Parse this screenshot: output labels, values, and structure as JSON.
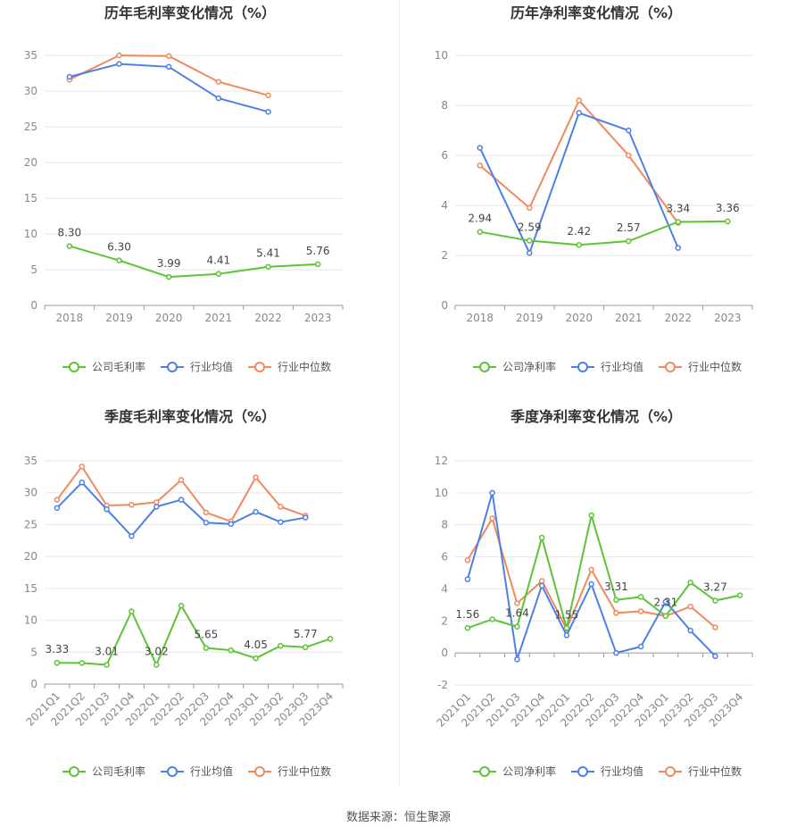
{
  "source": "数据来源：恒生聚源",
  "colors": {
    "company": "#5cc334",
    "avg": "#4e7fe6",
    "median": "#f0895d",
    "grid": "#e6e6e6",
    "axis": "#888888"
  },
  "chart_data": [
    {
      "type": "line",
      "title": "历年毛利率变化情况（%）",
      "categories": [
        "2018",
        "2019",
        "2020",
        "2021",
        "2022",
        "2023"
      ],
      "ylim": [
        0,
        35
      ],
      "yticks": [
        0,
        5,
        10,
        15,
        20,
        25,
        30,
        35
      ],
      "legend": "bottom",
      "series": [
        {
          "name": "公司毛利率",
          "key": "company",
          "values": [
            8.3,
            6.3,
            3.99,
            4.41,
            5.41,
            5.76
          ],
          "labels": [
            "8.30",
            "6.30",
            "3.99",
            "4.41",
            "5.41",
            "5.76"
          ]
        },
        {
          "name": "行业均值",
          "key": "avg",
          "values": [
            32.0,
            33.8,
            33.4,
            29.0,
            27.1,
            null
          ]
        },
        {
          "name": "行业中位数",
          "key": "median",
          "values": [
            31.6,
            35.0,
            34.9,
            31.3,
            29.4,
            null
          ]
        }
      ]
    },
    {
      "type": "line",
      "title": "历年净利率变化情况（%）",
      "categories": [
        "2018",
        "2019",
        "2020",
        "2021",
        "2022",
        "2023"
      ],
      "ylim": [
        0,
        10
      ],
      "yticks": [
        0,
        2,
        4,
        6,
        8,
        10
      ],
      "legend": "bottom",
      "series": [
        {
          "name": "公司净利率",
          "key": "company",
          "values": [
            2.94,
            2.59,
            2.42,
            2.57,
            3.34,
            3.36
          ],
          "labels": [
            "2.94",
            "2.59",
            "2.42",
            "2.57",
            "3.34",
            "3.36"
          ]
        },
        {
          "name": "行业均值",
          "key": "avg",
          "values": [
            6.3,
            2.1,
            7.7,
            7.0,
            2.3,
            null
          ]
        },
        {
          "name": "行业中位数",
          "key": "median",
          "values": [
            5.6,
            3.9,
            8.2,
            6.0,
            3.3,
            null
          ]
        }
      ]
    },
    {
      "type": "line",
      "title": "季度毛利率变化情况（%）",
      "categories": [
        "2021Q1",
        "2021Q2",
        "2021Q3",
        "2021Q4",
        "2022Q1",
        "2022Q2",
        "2022Q3",
        "2022Q4",
        "2023Q1",
        "2023Q2",
        "2023Q3",
        "2023Q4"
      ],
      "ylim": [
        0,
        35
      ],
      "yticks": [
        0,
        5,
        10,
        15,
        20,
        25,
        30,
        35
      ],
      "legend": "bottom",
      "series": [
        {
          "name": "公司毛利率",
          "key": "company",
          "values": [
            3.33,
            3.3,
            3.01,
            11.4,
            3.02,
            12.3,
            5.65,
            5.3,
            4.05,
            6.0,
            5.77,
            7.1
          ],
          "labels": [
            "3.33",
            "",
            "3.01",
            "",
            "3.02",
            "",
            "5.65",
            "",
            "4.05",
            "",
            "5.77",
            ""
          ]
        },
        {
          "name": "行业均值",
          "key": "avg",
          "values": [
            27.6,
            31.6,
            27.4,
            23.2,
            27.8,
            28.9,
            25.3,
            25.1,
            27.0,
            25.4,
            26.1,
            null
          ]
        },
        {
          "name": "行业中位数",
          "key": "median",
          "values": [
            28.9,
            34.1,
            28.0,
            28.1,
            28.5,
            32.0,
            26.9,
            25.5,
            32.4,
            27.8,
            26.4,
            null
          ]
        }
      ]
    },
    {
      "type": "line",
      "title": "季度净利率变化情况（%）",
      "categories": [
        "2021Q1",
        "2021Q2",
        "2021Q3",
        "2021Q4",
        "2022Q1",
        "2022Q2",
        "2022Q3",
        "2022Q4",
        "2023Q1",
        "2023Q2",
        "2023Q3",
        "2023Q4"
      ],
      "ylim": [
        -2,
        12
      ],
      "yticks": [
        -2,
        0,
        2,
        4,
        6,
        8,
        10,
        12
      ],
      "legend": "bottom",
      "series": [
        {
          "name": "公司净利率",
          "key": "company",
          "values": [
            1.56,
            2.1,
            1.64,
            7.2,
            1.55,
            8.6,
            3.31,
            3.5,
            2.31,
            4.4,
            3.27,
            3.6
          ],
          "labels": [
            "1.56",
            "",
            "1.64",
            "",
            "1.55",
            "",
            "3.31",
            "",
            "2.31",
            "",
            "3.27",
            ""
          ]
        },
        {
          "name": "行业均值",
          "key": "avg",
          "values": [
            4.6,
            10.0,
            -0.4,
            4.2,
            1.1,
            4.3,
            0.0,
            0.4,
            3.2,
            1.4,
            -0.2,
            null
          ]
        },
        {
          "name": "行业中位数",
          "key": "median",
          "values": [
            5.8,
            8.4,
            3.1,
            4.5,
            1.5,
            5.2,
            2.5,
            2.6,
            2.3,
            2.9,
            1.6,
            null
          ]
        }
      ]
    }
  ]
}
